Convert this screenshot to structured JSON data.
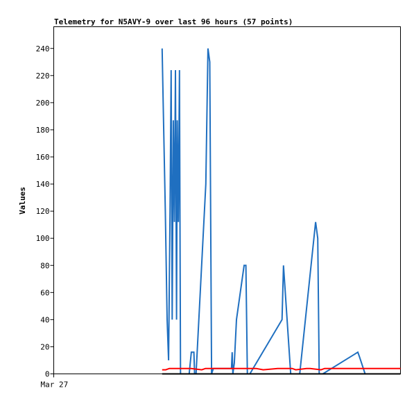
{
  "chart_data": {
    "type": "line",
    "title": "Telemetry for N5AVY-9 over last 96 hours (57 points)",
    "xlabel": "",
    "ylabel": "Values",
    "xlim": [
      0,
      96
    ],
    "ylim": [
      0,
      256
    ],
    "yticks": [
      0,
      20,
      40,
      60,
      80,
      100,
      120,
      140,
      160,
      180,
      200,
      220,
      240
    ],
    "xticks": [
      {
        "x": 0,
        "label": "Mar 27"
      }
    ],
    "grid": false,
    "legend": "none",
    "series": [
      {
        "color": "#1f6fc0",
        "x": [
          30.0,
          30.3,
          30.9,
          31.4,
          31.8,
          32.2,
          32.5,
          32.8,
          33.1,
          33.4,
          33.7,
          34.0,
          34.2,
          34.5,
          34.8,
          35.1,
          37.5,
          38.1,
          38.8,
          39.0,
          39.4,
          42.1,
          42.7,
          43.2,
          43.7,
          44.2,
          49.2,
          49.4,
          49.6,
          50.0,
          50.6,
          52.7,
          53.2,
          53.6,
          54.3,
          63.2,
          63.6,
          65.6,
          66.2,
          66.6,
          68.1,
          72.5,
          73.1,
          73.5,
          74.0,
          74.5,
          84.2,
          84.6,
          86.2
        ],
        "y": [
          240,
          200,
          120,
          40,
          10,
          120,
          224,
          40,
          187,
          112,
          224,
          40,
          187,
          112,
          224,
          0,
          0,
          16,
          16,
          0,
          0,
          140,
          240,
          230,
          0,
          4,
          4,
          16,
          0,
          8,
          40,
          80,
          80,
          0,
          0,
          40,
          80,
          0,
          0,
          0,
          0,
          112,
          100,
          0,
          0,
          0,
          16,
          13,
          0
        ]
      },
      {
        "color": "#ff0000",
        "x": [
          30.0,
          31.0,
          32.0,
          35.0,
          38.0,
          41.0,
          42.0,
          48.0,
          52.0,
          56.0,
          58.0,
          62.0,
          66.0,
          67.0,
          70.0,
          71.0,
          74.0,
          75.0,
          78.0,
          79.0,
          96.0
        ],
        "y": [
          3,
          3,
          4,
          4,
          4,
          3,
          4,
          4,
          4,
          4,
          3,
          4,
          4,
          3,
          4,
          4,
          3,
          4,
          4,
          4,
          4
        ]
      },
      {
        "color": "#000000",
        "x": [
          30.0,
          96.0
        ],
        "y": [
          0,
          0
        ]
      }
    ]
  }
}
